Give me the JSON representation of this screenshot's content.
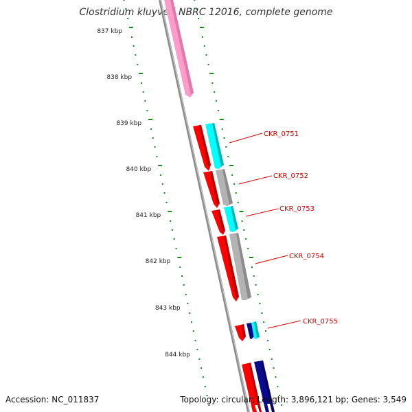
{
  "title": "Clostridium kluyveri NBRC 12016, complete genome",
  "footer": {
    "accession": "Accession: NC_011837",
    "summary": "Topology: circular; Length: 3,896,121 bp; Genes: 3,549"
  },
  "colors": {
    "backbone": "#8c8c8c",
    "tick": "#138a13",
    "label": "#d40000",
    "red": "#ff0000",
    "cyan": "#00ffff",
    "gray": "#b3b3b3",
    "pink": "#ff9ccc",
    "navy": "#0a0a8c"
  },
  "scale": {
    "unit": "kbp",
    "positions": [
      {
        "kbp": 837,
        "label": "837 kbp"
      },
      {
        "kbp": 838,
        "label": "838 kbp"
      },
      {
        "kbp": 839,
        "label": "839 kbp"
      },
      {
        "kbp": 840,
        "label": "840 kbp"
      },
      {
        "kbp": 841,
        "label": "841 kbp"
      },
      {
        "kbp": 842,
        "label": "842 kbp"
      },
      {
        "kbp": 843,
        "label": "843 kbp"
      },
      {
        "kbp": 844,
        "label": "844 kbp"
      }
    ]
  },
  "genes": [
    {
      "id": "CKR_0751",
      "label": "CKR_0751"
    },
    {
      "id": "CKR_0752",
      "label": "CKR_0752"
    },
    {
      "id": "CKR_0753",
      "label": "CKR_0753"
    },
    {
      "id": "CKR_0754",
      "label": "CKR_0754"
    },
    {
      "id": "CKR_0755",
      "label": "CKR_0755"
    }
  ]
}
